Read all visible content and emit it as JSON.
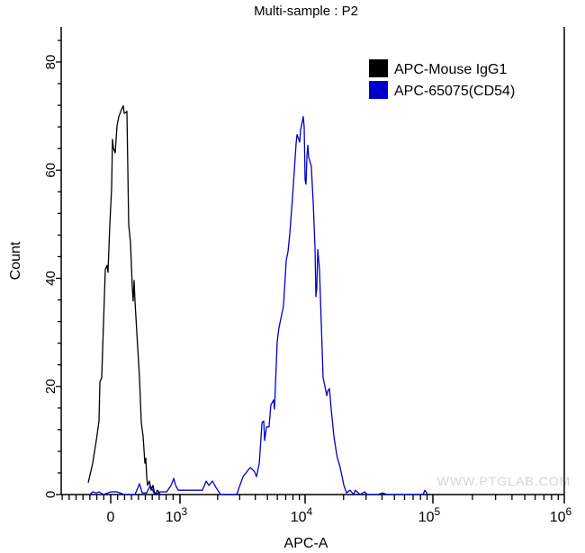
{
  "chart_data": {
    "type": "line",
    "title": "Multi-sample : P2",
    "xlabel": "APC-A",
    "ylabel": "Count",
    "x_scale": "biexponential",
    "x_ticks": [
      {
        "value": 0,
        "base": "0",
        "exp": ""
      },
      {
        "value": 1000,
        "base": "10",
        "exp": "3"
      },
      {
        "value": 10000,
        "base": "10",
        "exp": "4"
      },
      {
        "value": 100000,
        "base": "10",
        "exp": "5"
      },
      {
        "value": 1000000,
        "base": "10",
        "exp": "6"
      }
    ],
    "xlim": [
      -700,
      1000000
    ],
    "ylim": [
      0,
      86
    ],
    "y_ticks": [
      0,
      20,
      40,
      60,
      80
    ],
    "grid": false,
    "legend_position": "top-right",
    "watermark": "WWW.PTGLAB.COM",
    "series": [
      {
        "name": "APC-Mouse IgG1",
        "color": "#000000",
        "x": [
          -325,
          -260,
          -208,
          -169,
          -156,
          -130,
          -91,
          -78,
          -52,
          -39,
          -13,
          13,
          26,
          39,
          65,
          91,
          117,
          156,
          182,
          195,
          221,
          234,
          260,
          286,
          312,
          325,
          338,
          351,
          377,
          416,
          442,
          468,
          494,
          507,
          520,
          533,
          559,
          585,
          611,
          637,
          676,
          715
        ],
        "y": [
          2.2,
          5.8,
          10.0,
          13.6,
          20.8,
          21.6,
          36.6,
          41.6,
          42.4,
          41.1,
          49.9,
          56.6,
          65.7,
          64.1,
          63.2,
          68.2,
          69.9,
          71.2,
          71.9,
          70.5,
          70.7,
          70.9,
          49.9,
          46.6,
          38.3,
          35.8,
          39.6,
          35.8,
          30.0,
          21.6,
          13.3,
          10.8,
          5.8,
          6.7,
          3.3,
          1.7,
          2.5,
          0.8,
          1.7,
          0,
          0.8,
          0
        ]
      },
      {
        "name": "APC-65075(CD54)",
        "color": "#0000cc",
        "x": [
          -299,
          -260,
          -208,
          -169,
          -104,
          0,
          91,
          195,
          351,
          416,
          455,
          520,
          572,
          637,
          715,
          806,
          871,
          910,
          936,
          975,
          1090,
          1280,
          1510,
          1620,
          1700,
          1820,
          1940,
          2110,
          2490,
          2840,
          3190,
          3640,
          3950,
          4090,
          4300,
          4520,
          4670,
          4750,
          4910,
          5150,
          5330,
          5600,
          5690,
          5980,
          6180,
          6720,
          7060,
          7300,
          7550,
          7930,
          8470,
          8610,
          8910,
          9060,
          9210,
          9680,
          9840,
          10000,
          10160,
          10330,
          10500,
          10670,
          11190,
          11570,
          11950,
          12150,
          12350,
          12560,
          12970,
          13400,
          13840,
          14300,
          14770,
          15010,
          15510,
          16010,
          16800,
          17630,
          17930,
          18820,
          20100,
          21090,
          22500,
          23990,
          24770,
          26900,
          29200,
          30600,
          37200,
          40300,
          43800,
          83700,
          86500,
          90800
        ],
        "y": [
          0,
          0.5,
          0.3,
          0.5,
          0,
          0.5,
          0.5,
          0,
          0,
          2.0,
          0.3,
          0.3,
          1.7,
          0,
          0.5,
          0.5,
          1.7,
          3.0,
          1.7,
          0.8,
          0.8,
          0.8,
          0.8,
          2.5,
          1.7,
          2.5,
          1.3,
          0,
          0,
          0,
          3.3,
          5.0,
          4.2,
          3.3,
          5.8,
          13.3,
          13.6,
          10.0,
          12.5,
          12.5,
          16.6,
          17.5,
          15.8,
          28.3,
          30.8,
          34.9,
          43.3,
          44.9,
          48.3,
          54.9,
          64.9,
          66.6,
          65.7,
          65.2,
          67.4,
          69.9,
          67.9,
          58.2,
          57.4,
          62.4,
          64.6,
          62.4,
          60.7,
          54.1,
          45.8,
          36.6,
          38.3,
          45.3,
          41.6,
          31.6,
          21.6,
          20.0,
          18.3,
          19.1,
          19.6,
          15.8,
          10.8,
          7.5,
          6.7,
          5.0,
          1.7,
          0.3,
          0.8,
          0,
          0.8,
          0,
          0.5,
          0,
          0,
          0.3,
          0,
          0,
          0.8,
          0
        ]
      }
    ]
  }
}
